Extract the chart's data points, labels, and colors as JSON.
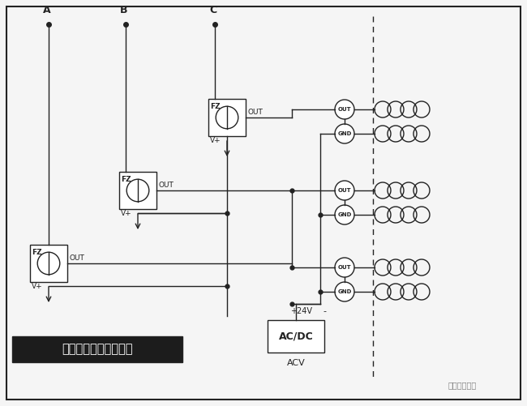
{
  "title": "多路变送器共用接线图",
  "bg_color": "#f5f5f5",
  "line_color": "#222222",
  "box_fill": "#ffffff",
  "label_A": "A",
  "label_B": "B",
  "label_C": "C",
  "label_FZ": "FZ",
  "label_OUT": "OUT",
  "label_Vplus": "V+",
  "label_GND": "GND",
  "label_24V": "+24V",
  "label_minus": "-",
  "label_ACDC": "AC/DC",
  "label_ACV": "ACV",
  "watermark": "电气叫设课堂"
}
